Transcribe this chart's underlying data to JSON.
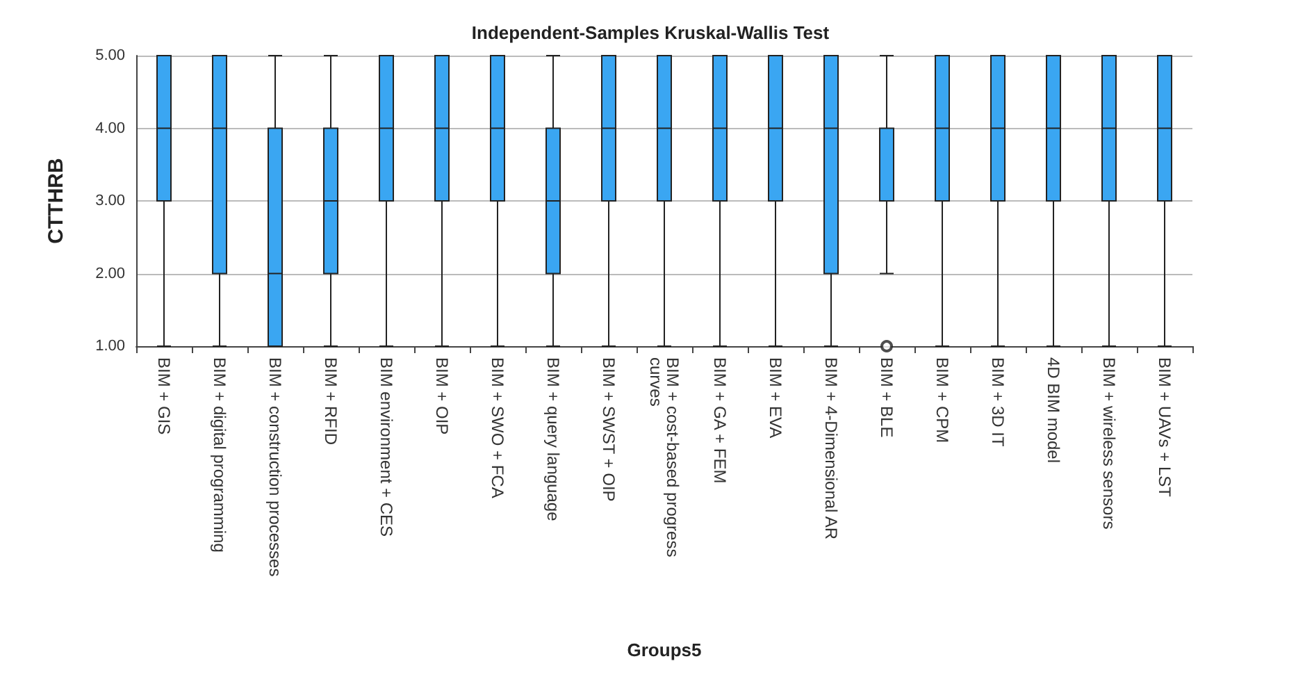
{
  "chart_data": {
    "type": "box",
    "title": "Independent-Samples Kruskal-Wallis Test",
    "xlabel": "Groups5",
    "ylabel": "CTTHRB",
    "categories": [
      "BIM + GIS",
      "BIM + digital programming",
      "BIM + construction processes",
      "BIM + RFID",
      "BIM environment + CES",
      "BIM + OIP",
      "BIM + SWO + FCA",
      "BIM + query language",
      "BIM + SWST + OIP",
      "BIM + cost-based progress curves",
      "BIM + GA + FEM",
      "BIM + EVA",
      "BIM + 4-Dimensional AR",
      "BIM + BLE",
      "BIM + CPM",
      "BIM + 3D IT",
      "4D BIM model",
      "BIM + wireless sensors",
      "BIM + UAVs + LST"
    ],
    "color": "#3aa6f2",
    "boxes": [
      {
        "low": 1,
        "q1": 3,
        "median": 4,
        "q3": 5,
        "high": 5
      },
      {
        "low": 1,
        "q1": 2,
        "median": 4,
        "q3": 5,
        "high": 5
      },
      {
        "low": 1,
        "q1": 1,
        "median": 2,
        "q3": 4,
        "high": 5
      },
      {
        "low": 1,
        "q1": 2,
        "median": 3,
        "q3": 4,
        "high": 5
      },
      {
        "low": 1,
        "q1": 3,
        "median": 4,
        "q3": 5,
        "high": 5
      },
      {
        "low": 1,
        "q1": 3,
        "median": 4,
        "q3": 5,
        "high": 5
      },
      {
        "low": 1,
        "q1": 3,
        "median": 4,
        "q3": 5,
        "high": 5
      },
      {
        "low": 1,
        "q1": 2,
        "median": 3,
        "q3": 4,
        "high": 5
      },
      {
        "low": 1,
        "q1": 3,
        "median": 4,
        "q3": 5,
        "high": 5
      },
      {
        "low": 1,
        "q1": 3,
        "median": 4,
        "q3": 5,
        "high": 5
      },
      {
        "low": 1,
        "q1": 3,
        "median": 4,
        "q3": 5,
        "high": 5
      },
      {
        "low": 1,
        "q1": 3,
        "median": 4,
        "q3": 5,
        "high": 5
      },
      {
        "low": 1,
        "q1": 2,
        "median": 4,
        "q3": 5,
        "high": 5
      },
      {
        "low": 2,
        "q1": 3,
        "median": 3,
        "q3": 4,
        "high": 5,
        "outliers": [
          1
        ]
      },
      {
        "low": 1,
        "q1": 3,
        "median": 4,
        "q3": 5,
        "high": 5
      },
      {
        "low": 1,
        "q1": 3,
        "median": 4,
        "q3": 5,
        "high": 5
      },
      {
        "low": 1,
        "q1": 3,
        "median": 4,
        "q3": 5,
        "high": 5
      },
      {
        "low": 1,
        "q1": 3,
        "median": 4,
        "q3": 5,
        "high": 5
      },
      {
        "low": 1,
        "q1": 3,
        "median": 4,
        "q3": 5,
        "high": 5
      }
    ],
    "ylim": [
      1,
      5
    ],
    "yticks": [
      {
        "value": 1,
        "label": "1.00"
      },
      {
        "value": 2,
        "label": "2.00"
      },
      {
        "value": 3,
        "label": "3.00"
      },
      {
        "value": 4,
        "label": "4.00"
      },
      {
        "value": 5,
        "label": "5.00"
      }
    ],
    "grid": "y"
  }
}
